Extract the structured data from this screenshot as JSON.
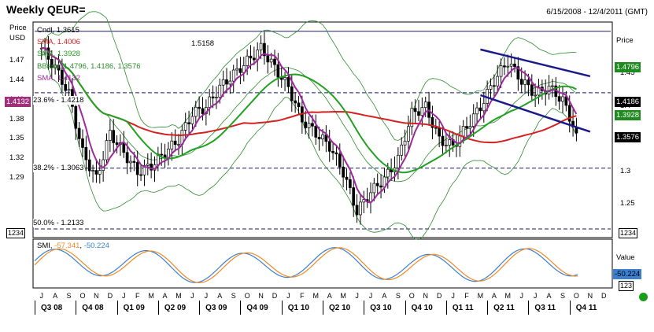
{
  "header": {
    "title": "Weekly QEUR=",
    "date_range": "6/15/2008 - 12/4/2011 (GMT)"
  },
  "main_panel": {
    "left_axis_title": [
      "Price",
      "USD"
    ],
    "right_axis_title": "Price",
    "left_ticks": [
      "1.47",
      "1.44",
      "1.41",
      "1.38",
      "1.35",
      "1.32",
      "1.29"
    ],
    "right_ticks": [
      "1.45",
      "1.4",
      "1.35",
      "1.3",
      "1.25"
    ],
    "legend": {
      "cndl": "Cndl, 1.3615",
      "sma_red": "SMA, 1.4006",
      "sma_green": "SMA, 1.3928",
      "bband": "BBand, 1.4796, 1.4186, 1.3576",
      "sma_purple": "SMA, 1.4132"
    },
    "level_labels": {
      "top_line": "1.5158",
      "fib_236": "23.6% - 1.4218",
      "fib_382": "38.2% - 1.3063",
      "fib_500": "50.0% - 1.2133"
    },
    "left_boxes": {
      "sma_purple": "1.4132",
      "zoom_box": "1234"
    },
    "right_boxes": {
      "b_upper": "1.4796",
      "b_mid": "1.4186",
      "sma_green": "1.3928",
      "b_lower": "1.3576",
      "zoom_box": "1234"
    }
  },
  "sub_panel": {
    "legend": {
      "name": "SMI",
      "v1": "-57.341",
      "v2": "-50.224"
    },
    "right_title": "Value",
    "right_box_value": "-50.224",
    "right_box_small": "123"
  },
  "x_axis": {
    "months": [
      "J",
      "A",
      "S",
      "O",
      "N",
      "D",
      "J",
      "F",
      "M",
      "A",
      "M",
      "J",
      "J",
      "A",
      "S",
      "O",
      "N",
      "D",
      "J",
      "F",
      "M",
      "A",
      "M",
      "J",
      "J",
      "A",
      "S",
      "O",
      "N",
      "D",
      "J",
      "F",
      "M",
      "A",
      "M",
      "J",
      "J",
      "A",
      "S",
      "O",
      "N",
      "D"
    ],
    "quarters": [
      "Q3 08",
      "Q4 08",
      "Q1 09",
      "Q2 09",
      "Q3 09",
      "Q4 09",
      "Q1 10",
      "Q2 10",
      "Q3 10",
      "Q4 10",
      "Q1 11",
      "Q2 11",
      "Q3 11",
      "Q4 11"
    ]
  },
  "colors": {
    "sma_red": "#d42020",
    "sma_green": "#22a022",
    "bband": "#2e8b2e",
    "sma_purple": "#9b2b9b",
    "trend": "#1a1a8c",
    "smi_orange": "#f08a24",
    "smi_blue": "#3a7fd0",
    "purple_box": "#a0307a",
    "green_box": "#1f8a1f",
    "dark_box": "#000000"
  },
  "chart_data": [
    {
      "type": "candlestick",
      "title": "Weekly QEUR=",
      "ylabel": "Price USD",
      "ylim": [
        1.2,
        1.53
      ],
      "x_range": [
        "2008-06-15",
        "2011-12-04"
      ],
      "series": [
        {
          "name": "Cndl",
          "last": 1.3615,
          "points": [
            [
              "2008-07",
              1.49
            ],
            [
              "2008-08",
              1.46
            ],
            [
              "2008-09",
              1.42
            ],
            [
              "2008-10",
              1.33
            ],
            [
              "2008-11",
              1.29
            ],
            [
              "2008-12",
              1.36
            ],
            [
              "2009-01",
              1.33
            ],
            [
              "2009-02",
              1.3
            ],
            [
              "2009-03",
              1.31
            ],
            [
              "2009-04",
              1.33
            ],
            [
              "2009-05",
              1.35
            ],
            [
              "2009-06",
              1.39
            ],
            [
              "2009-07",
              1.4
            ],
            [
              "2009-08",
              1.43
            ],
            [
              "2009-09",
              1.45
            ],
            [
              "2009-10",
              1.47
            ],
            [
              "2009-11",
              1.49
            ],
            [
              "2009-12",
              1.46
            ],
            [
              "2010-01",
              1.43
            ],
            [
              "2010-02",
              1.38
            ],
            [
              "2010-03",
              1.36
            ],
            [
              "2010-04",
              1.34
            ],
            [
              "2010-05",
              1.3
            ],
            [
              "2010-06",
              1.24
            ],
            [
              "2010-07",
              1.27
            ],
            [
              "2010-08",
              1.29
            ],
            [
              "2010-09",
              1.32
            ],
            [
              "2010-10",
              1.39
            ],
            [
              "2010-11",
              1.4
            ],
            [
              "2010-12",
              1.35
            ],
            [
              "2011-01",
              1.34
            ],
            [
              "2011-02",
              1.37
            ],
            [
              "2011-03",
              1.4
            ],
            [
              "2011-04",
              1.44
            ],
            [
              "2011-05",
              1.47
            ],
            [
              "2011-06",
              1.44
            ],
            [
              "2011-07",
              1.42
            ],
            [
              "2011-08",
              1.43
            ],
            [
              "2011-09",
              1.41
            ],
            [
              "2011-10",
              1.36
            ]
          ]
        },
        {
          "name": "SMA",
          "value": 1.4006,
          "color": "red"
        },
        {
          "name": "SMA",
          "value": 1.3928,
          "color": "green"
        },
        {
          "name": "BBand",
          "values": [
            1.4796,
            1.4186,
            1.3576
          ]
        },
        {
          "name": "SMA",
          "value": 1.4132,
          "color": "purple"
        }
      ],
      "levels": [
        {
          "label": "1.5158",
          "value": 1.5158
        },
        {
          "label": "23.6% - 1.4218",
          "value": 1.4218
        },
        {
          "label": "38.2% - 1.3063",
          "value": 1.3063
        },
        {
          "label": "50.0% - 1.2133",
          "value": 1.2133
        }
      ],
      "trendlines": [
        {
          "from": [
            "2011-03",
            1.488
          ],
          "to": [
            "2011-11",
            1.447
          ]
        },
        {
          "from": [
            "2011-03",
            1.418
          ],
          "to": [
            "2011-11",
            1.362
          ]
        }
      ]
    },
    {
      "type": "line",
      "title": "SMI",
      "series": [
        {
          "name": "SMI",
          "last": -57.341
        },
        {
          "name": "SMI",
          "last": -50.224
        }
      ]
    }
  ]
}
